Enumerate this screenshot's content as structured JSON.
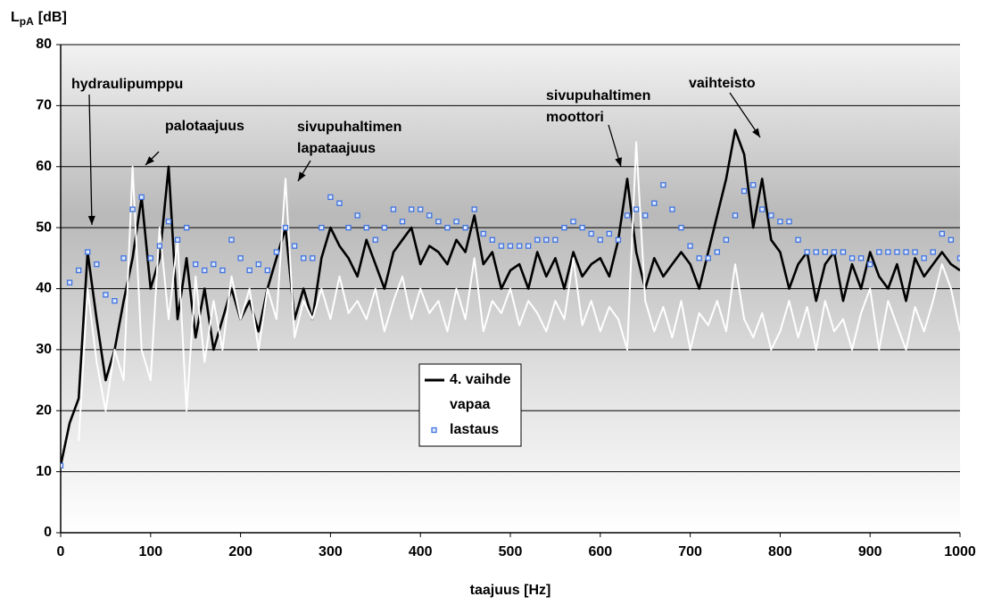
{
  "chart_data": {
    "type": "line",
    "ylabel": {
      "text": "L",
      "sub": "pA",
      "unit": "[dB]"
    },
    "xlabel": "taajuus [Hz]",
    "xlim": [
      0,
      1000
    ],
    "xticks": [
      0,
      100,
      200,
      300,
      400,
      500,
      600,
      700,
      800,
      900,
      1000
    ],
    "ylim": [
      0,
      80
    ],
    "yticks": [
      0,
      10,
      20,
      30,
      40,
      50,
      60,
      70,
      80
    ],
    "grid": true,
    "x": [
      0,
      10,
      20,
      30,
      40,
      50,
      60,
      70,
      80,
      90,
      100,
      110,
      120,
      130,
      140,
      150,
      160,
      170,
      180,
      190,
      200,
      210,
      220,
      230,
      240,
      250,
      260,
      270,
      280,
      290,
      300,
      310,
      320,
      330,
      340,
      350,
      360,
      370,
      380,
      390,
      400,
      410,
      420,
      430,
      440,
      450,
      460,
      470,
      480,
      490,
      500,
      510,
      520,
      530,
      540,
      550,
      560,
      570,
      580,
      590,
      600,
      610,
      620,
      630,
      640,
      650,
      660,
      670,
      680,
      690,
      700,
      710,
      720,
      730,
      740,
      750,
      760,
      770,
      780,
      790,
      800,
      810,
      820,
      830,
      840,
      850,
      860,
      870,
      880,
      890,
      900,
      910,
      920,
      930,
      940,
      950,
      960,
      970,
      980,
      990,
      1000
    ],
    "series": [
      {
        "name": "4. vaihde",
        "color": "#000000",
        "style": "line",
        "values": [
          11,
          18,
          22,
          46,
          35,
          25,
          30,
          38,
          45,
          55,
          40,
          45,
          60,
          35,
          45,
          32,
          40,
          30,
          35,
          40,
          35,
          38,
          33,
          40,
          45,
          50,
          35,
          40,
          35,
          45,
          50,
          47,
          45,
          42,
          48,
          44,
          40,
          46,
          48,
          50,
          44,
          47,
          46,
          44,
          48,
          46,
          52,
          44,
          46,
          40,
          43,
          44,
          40,
          46,
          42,
          45,
          40,
          46,
          42,
          44,
          45,
          42,
          48,
          58,
          46,
          40,
          45,
          42,
          44,
          46,
          44,
          40,
          46,
          52,
          58,
          66,
          62,
          50,
          58,
          48,
          46,
          40,
          44,
          46,
          38,
          44,
          46,
          38,
          44,
          40,
          46,
          42,
          40,
          44,
          38,
          45,
          42,
          44,
          46,
          44,
          43
        ]
      },
      {
        "name": "vapaa",
        "color": "#ffffff",
        "style": "line",
        "values": [
          null,
          null,
          15,
          40,
          28,
          20,
          30,
          25,
          60,
          30,
          25,
          50,
          35,
          48,
          20,
          42,
          28,
          38,
          30,
          42,
          35,
          40,
          30,
          40,
          35,
          58,
          32,
          38,
          35,
          40,
          35,
          42,
          36,
          38,
          35,
          40,
          33,
          38,
          42,
          35,
          40,
          36,
          38,
          33,
          40,
          35,
          45,
          33,
          38,
          36,
          40,
          34,
          38,
          36,
          33,
          38,
          35,
          45,
          34,
          38,
          33,
          37,
          35,
          30,
          64,
          38,
          33,
          37,
          32,
          38,
          30,
          36,
          34,
          38,
          33,
          44,
          35,
          32,
          36,
          30,
          33,
          38,
          32,
          37,
          30,
          38,
          33,
          35,
          30,
          36,
          40,
          30,
          38,
          34,
          30,
          37,
          33,
          38,
          44,
          40,
          33
        ]
      },
      {
        "name": "lastaus",
        "color": "#3f73e0",
        "style": "marker",
        "values": [
          11,
          41,
          43,
          46,
          44,
          39,
          38,
          45,
          53,
          55,
          45,
          47,
          51,
          48,
          50,
          44,
          43,
          44,
          43,
          48,
          45,
          43,
          44,
          43,
          46,
          50,
          47,
          45,
          45,
          50,
          55,
          54,
          50,
          52,
          50,
          48,
          50,
          53,
          51,
          53,
          53,
          52,
          51,
          50,
          51,
          50,
          53,
          49,
          48,
          47,
          47,
          47,
          47,
          48,
          48,
          48,
          50,
          51,
          50,
          49,
          48,
          49,
          48,
          52,
          53,
          52,
          54,
          57,
          53,
          50,
          47,
          45,
          45,
          46,
          48,
          52,
          56,
          57,
          53,
          52,
          51,
          51,
          48,
          46,
          46,
          46,
          46,
          46,
          45,
          45,
          44,
          46,
          46,
          46,
          46,
          46,
          45,
          46,
          49,
          48,
          45
        ]
      }
    ],
    "annotations": [
      {
        "text": [
          "hydraulipumppu"
        ]
      },
      {
        "text": [
          "palotaajuus"
        ]
      },
      {
        "text": [
          "sivupuhaltimen",
          "lapataajuus"
        ]
      },
      {
        "text": [
          "sivupuhaltimen",
          "moottori"
        ]
      },
      {
        "text": [
          "vaihteisto"
        ]
      }
    ]
  }
}
